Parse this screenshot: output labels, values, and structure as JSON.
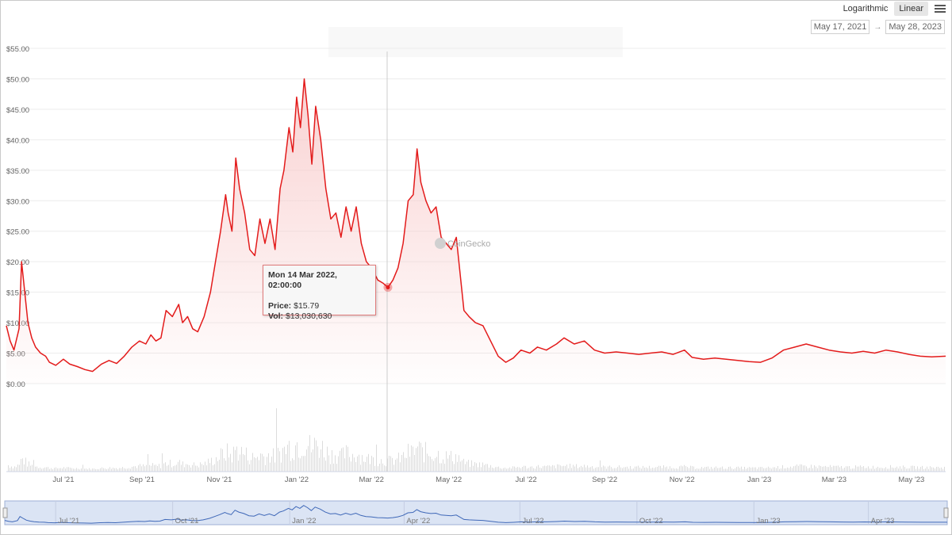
{
  "controls": {
    "scale_options": [
      "Logarithmic",
      "Linear"
    ],
    "active_scale": "Linear",
    "menu_icon": "hamburger-menu-icon",
    "date_from": "May 17, 2021",
    "date_to": "May 28, 2023",
    "range_arrow": "→"
  },
  "watermark": "CoinGecko",
  "tooltip": {
    "date": "Mon 14 Mar 2022, 02:00:00",
    "price_label": "Price:",
    "price_value": "$15.79",
    "vol_label": "Vol:",
    "vol_value": "$13,030,630"
  },
  "colors": {
    "price_line": "#e31b1b",
    "area_fill": "#f8caca",
    "volume_bars": "#dcdcdc",
    "navigator_line": "#3f68b8",
    "navigator_fill": "#dbe4f4",
    "crosshair": "#cccccc"
  },
  "chart_data": {
    "type": "line",
    "title": "",
    "xlabel": "",
    "ylabel": "",
    "x_range": [
      "2021-05-17",
      "2023-05-28"
    ],
    "ylim": [
      0,
      55
    ],
    "y_ticks": [
      "$0.00",
      "$5.00",
      "$10.00",
      "$15.00",
      "$20.00",
      "$25.00",
      "$30.00",
      "$35.00",
      "$40.00",
      "$45.00",
      "$50.00",
      "$55.00"
    ],
    "x_ticks": [
      {
        "label": "Jul '21",
        "date": "2021-07-01"
      },
      {
        "label": "Sep '21",
        "date": "2021-09-01"
      },
      {
        "label": "Nov '21",
        "date": "2021-11-01"
      },
      {
        "label": "Jan '22",
        "date": "2022-01-01"
      },
      {
        "label": "Mar '22",
        "date": "2022-03-01"
      },
      {
        "label": "May '22",
        "date": "2022-05-01"
      },
      {
        "label": "Jul '22",
        "date": "2022-07-01"
      },
      {
        "label": "Sep '22",
        "date": "2022-09-01"
      },
      {
        "label": "Nov '22",
        "date": "2022-11-01"
      },
      {
        "label": "Jan '23",
        "date": "2023-01-01"
      },
      {
        "label": "Mar '23",
        "date": "2023-03-01"
      },
      {
        "label": "May '23",
        "date": "2023-05-01"
      }
    ],
    "navigator_ticks": [
      "Jul '21",
      "Oct '21",
      "Jan '22",
      "Apr '22",
      "Jul '22",
      "Oct '22",
      "Jan '23",
      "Apr '23"
    ],
    "series": [
      {
        "name": "Price",
        "points": [
          [
            "2021-05-17",
            9.5
          ],
          [
            "2021-05-20",
            7.0
          ],
          [
            "2021-05-23",
            5.5
          ],
          [
            "2021-05-27",
            9.0
          ],
          [
            "2021-05-29",
            20.0
          ],
          [
            "2021-06-01",
            14.0
          ],
          [
            "2021-06-03",
            10.0
          ],
          [
            "2021-06-06",
            7.5
          ],
          [
            "2021-06-09",
            6.0
          ],
          [
            "2021-06-13",
            5.0
          ],
          [
            "2021-06-17",
            4.5
          ],
          [
            "2021-06-20",
            3.5
          ],
          [
            "2021-06-25",
            3.0
          ],
          [
            "2021-07-01",
            4.0
          ],
          [
            "2021-07-06",
            3.2
          ],
          [
            "2021-07-12",
            2.8
          ],
          [
            "2021-07-18",
            2.3
          ],
          [
            "2021-07-24",
            2.0
          ],
          [
            "2021-07-31",
            3.2
          ],
          [
            "2021-08-06",
            3.8
          ],
          [
            "2021-08-12",
            3.3
          ],
          [
            "2021-08-18",
            4.5
          ],
          [
            "2021-08-24",
            6.0
          ],
          [
            "2021-08-30",
            7.0
          ],
          [
            "2021-09-04",
            6.5
          ],
          [
            "2021-09-08",
            8.0
          ],
          [
            "2021-09-12",
            7.0
          ],
          [
            "2021-09-16",
            7.5
          ],
          [
            "2021-09-20",
            12.0
          ],
          [
            "2021-09-25",
            11.0
          ],
          [
            "2021-09-30",
            13.0
          ],
          [
            "2021-10-03",
            10.0
          ],
          [
            "2021-10-07",
            11.0
          ],
          [
            "2021-10-11",
            9.0
          ],
          [
            "2021-10-15",
            8.5
          ],
          [
            "2021-10-20",
            11.0
          ],
          [
            "2021-10-25",
            15.0
          ],
          [
            "2021-10-29",
            20.0
          ],
          [
            "2021-11-02",
            25.0
          ],
          [
            "2021-11-06",
            31.0
          ],
          [
            "2021-11-08",
            28.0
          ],
          [
            "2021-11-11",
            25.0
          ],
          [
            "2021-11-14",
            37.0
          ],
          [
            "2021-11-17",
            32.0
          ],
          [
            "2021-11-21",
            28.0
          ],
          [
            "2021-11-25",
            22.0
          ],
          [
            "2021-11-29",
            21.0
          ],
          [
            "2021-12-03",
            27.0
          ],
          [
            "2021-12-07",
            23.0
          ],
          [
            "2021-12-11",
            27.0
          ],
          [
            "2021-12-15",
            22.0
          ],
          [
            "2021-12-19",
            32.0
          ],
          [
            "2021-12-22",
            35.0
          ],
          [
            "2021-12-26",
            42.0
          ],
          [
            "2021-12-29",
            38.0
          ],
          [
            "2022-01-01",
            47.0
          ],
          [
            "2022-01-04",
            42.0
          ],
          [
            "2022-01-07",
            50.0
          ],
          [
            "2022-01-10",
            44.0
          ],
          [
            "2022-01-13",
            36.0
          ],
          [
            "2022-01-16",
            45.5
          ],
          [
            "2022-01-20",
            40.0
          ],
          [
            "2022-01-24",
            32.0
          ],
          [
            "2022-01-28",
            27.0
          ],
          [
            "2022-02-01",
            28.0
          ],
          [
            "2022-02-05",
            24.0
          ],
          [
            "2022-02-09",
            29.0
          ],
          [
            "2022-02-13",
            25.0
          ],
          [
            "2022-02-17",
            29.0
          ],
          [
            "2022-02-21",
            23.0
          ],
          [
            "2022-02-25",
            20.0
          ],
          [
            "2022-03-01",
            19.0
          ],
          [
            "2022-03-06",
            17.0
          ],
          [
            "2022-03-10",
            16.5
          ],
          [
            "2022-03-14",
            15.79
          ],
          [
            "2022-03-18",
            17.0
          ],
          [
            "2022-03-22",
            19.0
          ],
          [
            "2022-03-26",
            23.0
          ],
          [
            "2022-03-30",
            30.0
          ],
          [
            "2022-04-03",
            31.0
          ],
          [
            "2022-04-06",
            38.5
          ],
          [
            "2022-04-09",
            33.0
          ],
          [
            "2022-04-13",
            30.0
          ],
          [
            "2022-04-17",
            28.0
          ],
          [
            "2022-04-21",
            29.0
          ],
          [
            "2022-04-25",
            24.0
          ],
          [
            "2022-04-29",
            23.0
          ],
          [
            "2022-05-03",
            22.0
          ],
          [
            "2022-05-07",
            24.0
          ],
          [
            "2022-05-10",
            18.0
          ],
          [
            "2022-05-13",
            12.0
          ],
          [
            "2022-05-17",
            11.0
          ],
          [
            "2022-05-22",
            10.0
          ],
          [
            "2022-05-28",
            9.5
          ],
          [
            "2022-06-03",
            7.0
          ],
          [
            "2022-06-09",
            4.5
          ],
          [
            "2022-06-15",
            3.5
          ],
          [
            "2022-06-21",
            4.2
          ],
          [
            "2022-06-27",
            5.5
          ],
          [
            "2022-07-04",
            5.0
          ],
          [
            "2022-07-10",
            6.0
          ],
          [
            "2022-07-17",
            5.5
          ],
          [
            "2022-07-25",
            6.5
          ],
          [
            "2022-07-31",
            7.5
          ],
          [
            "2022-08-08",
            6.5
          ],
          [
            "2022-08-16",
            7.0
          ],
          [
            "2022-08-24",
            5.5
          ],
          [
            "2022-09-01",
            5.0
          ],
          [
            "2022-09-10",
            5.2
          ],
          [
            "2022-09-19",
            5.0
          ],
          [
            "2022-09-28",
            4.8
          ],
          [
            "2022-10-07",
            5.0
          ],
          [
            "2022-10-16",
            5.2
          ],
          [
            "2022-10-25",
            4.8
          ],
          [
            "2022-11-03",
            5.5
          ],
          [
            "2022-11-09",
            4.3
          ],
          [
            "2022-11-18",
            4.0
          ],
          [
            "2022-11-27",
            4.2
          ],
          [
            "2022-12-06",
            4.0
          ],
          [
            "2022-12-15",
            3.8
          ],
          [
            "2022-12-24",
            3.6
          ],
          [
            "2023-01-02",
            3.5
          ],
          [
            "2023-01-11",
            4.2
          ],
          [
            "2023-01-20",
            5.5
          ],
          [
            "2023-01-29",
            6.0
          ],
          [
            "2023-02-07",
            6.5
          ],
          [
            "2023-02-16",
            6.0
          ],
          [
            "2023-02-25",
            5.5
          ],
          [
            "2023-03-06",
            5.2
          ],
          [
            "2023-03-15",
            5.0
          ],
          [
            "2023-03-24",
            5.3
          ],
          [
            "2023-04-02",
            5.0
          ],
          [
            "2023-04-11",
            5.5
          ],
          [
            "2023-04-20",
            5.2
          ],
          [
            "2023-04-29",
            4.8
          ],
          [
            "2023-05-08",
            4.5
          ],
          [
            "2023-05-17",
            4.4
          ],
          [
            "2023-05-28",
            4.5
          ]
        ]
      }
    ]
  }
}
